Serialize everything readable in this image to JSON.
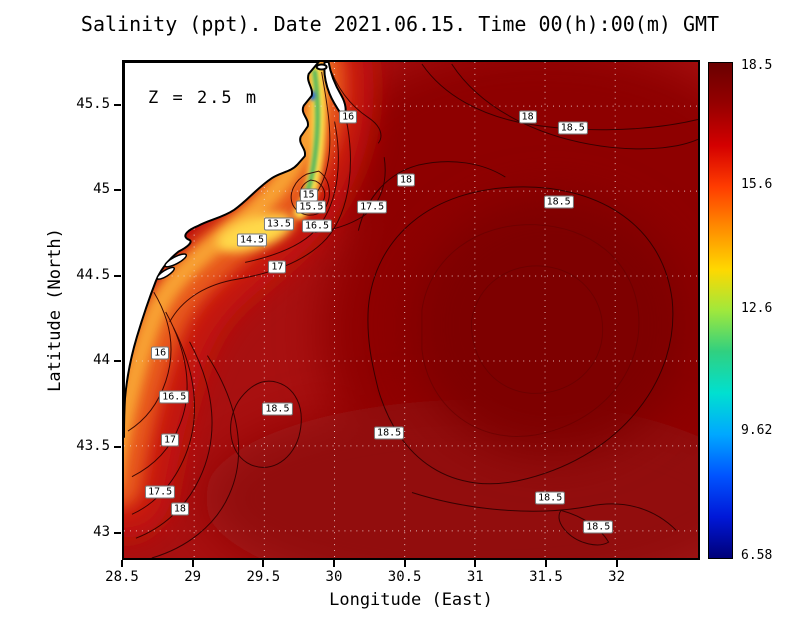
{
  "figure": {
    "title": "Salinity (ppt). Date 2021.06.15. Time 00(h):00(m) GMT",
    "depth_annotation": "Z = 2.5 m",
    "xlabel": "Longitude (East)",
    "ylabel": "Latitude (North)"
  },
  "chart_data": {
    "type": "heatmap",
    "title": "Salinity (ppt). Date 2021.06.15. Time 00(h):00(m) GMT",
    "depth_annotation": "Z = 2.5 m",
    "xlabel": "Longitude (East)",
    "ylabel": "Latitude (North)",
    "x_ticks": [
      28.5,
      29,
      29.5,
      30,
      30.5,
      31,
      31.5,
      32
    ],
    "y_ticks": [
      45.5,
      45,
      44.5,
      44,
      43.5,
      43
    ],
    "x_range": [
      28.5,
      32.59
    ],
    "y_range": [
      42.84,
      45.76
    ],
    "grid": "dashed",
    "field_min_near_coast": 13.5,
    "field_max_offshore": 18.5,
    "colorbar": {
      "position": "right",
      "min": 6.58,
      "max": 18.5,
      "tick_values": [
        18.5,
        15.6,
        12.6,
        9.62,
        6.58
      ],
      "gradient_top_to_bottom": [
        "#6a0000",
        "#960000",
        "#d40000",
        "#ff3c00",
        "#ff8c00",
        "#ffd800",
        "#a0e83c",
        "#30d080",
        "#00e0d0",
        "#00a8ff",
        "#0054ff",
        "#0018d8",
        "#000078"
      ]
    },
    "contour_labels": [
      {
        "value": "16",
        "lon": 30.1,
        "lat": 45.43
      },
      {
        "value": "18",
        "lon": 31.37,
        "lat": 45.43
      },
      {
        "value": "18.5",
        "lon": 31.69,
        "lat": 45.36
      },
      {
        "value": "18",
        "lon": 30.51,
        "lat": 45.06
      },
      {
        "value": "15",
        "lon": 29.82,
        "lat": 44.97
      },
      {
        "value": "15.5",
        "lon": 29.84,
        "lat": 44.9
      },
      {
        "value": "17.5",
        "lon": 30.27,
        "lat": 44.9
      },
      {
        "value": "18.5",
        "lon": 31.59,
        "lat": 44.93
      },
      {
        "value": "13.5",
        "lon": 29.61,
        "lat": 44.8
      },
      {
        "value": "16.5",
        "lon": 29.88,
        "lat": 44.79
      },
      {
        "value": "14.5",
        "lon": 29.42,
        "lat": 44.71
      },
      {
        "value": "17",
        "lon": 29.6,
        "lat": 44.55
      },
      {
        "value": "16",
        "lon": 28.77,
        "lat": 44.05
      },
      {
        "value": "16.5",
        "lon": 28.87,
        "lat": 43.79
      },
      {
        "value": "18.5",
        "lon": 29.6,
        "lat": 43.72
      },
      {
        "value": "17",
        "lon": 28.84,
        "lat": 43.54
      },
      {
        "value": "18.5",
        "lon": 30.39,
        "lat": 43.58
      },
      {
        "value": "17.5",
        "lon": 28.77,
        "lat": 43.24
      },
      {
        "value": "18",
        "lon": 28.91,
        "lat": 43.14
      },
      {
        "value": "18.5",
        "lon": 31.53,
        "lat": 43.2
      },
      {
        "value": "18.5",
        "lon": 31.87,
        "lat": 43.03
      }
    ]
  }
}
